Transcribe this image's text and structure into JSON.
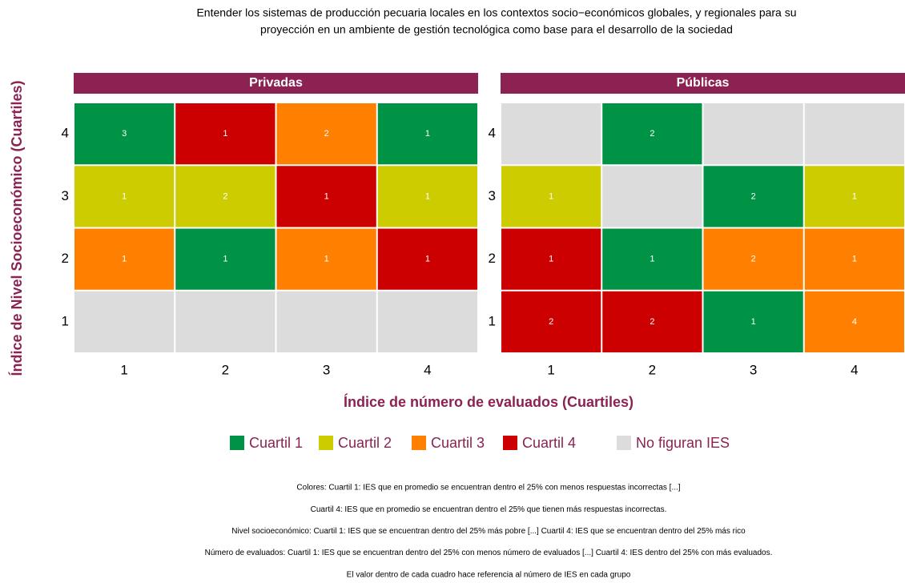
{
  "chart_data": {
    "type": "heatmap",
    "title": [
      "Entender los sistemas de producción pecuaria locales en los contextos socio−económicos globales, y regionales para su",
      "proyección en un ambiente de gestión tecnológica como base para el desarrollo de la sociedad"
    ],
    "xlabel": "Índice de número de evaluados (Cuartiles)",
    "ylabel": "Índice de Nivel Socioeconómico (Cuartiles)",
    "x_categories": [
      1,
      2,
      3,
      4
    ],
    "y_categories": [
      1,
      2,
      3,
      4
    ],
    "legend": [
      {
        "name": "Cuartil 1",
        "color": "#009245"
      },
      {
        "name": "Cuartil 2",
        "color": "#cccc00"
      },
      {
        "name": "Cuartil 3",
        "color": "#ff7f00"
      },
      {
        "name": "Cuartil 4",
        "color": "#cc0000"
      },
      {
        "name": "No figuran IES",
        "color": "#dcdcdc"
      }
    ],
    "panels": [
      {
        "name": "Privadas",
        "values": [
          [
            null,
            null,
            null,
            null
          ],
          [
            1,
            1,
            1,
            1
          ],
          [
            1,
            2,
            1,
            1
          ],
          [
            3,
            1,
            2,
            1
          ]
        ],
        "colors": [
          [
            "#dcdcdc",
            "#dcdcdc",
            "#dcdcdc",
            "#dcdcdc"
          ],
          [
            "#ff7f00",
            "#009245",
            "#ff7f00",
            "#cc0000"
          ],
          [
            "#cccc00",
            "#cccc00",
            "#cc0000",
            "#cccc00"
          ],
          [
            "#009245",
            "#cc0000",
            "#ff7f00",
            "#009245"
          ]
        ]
      },
      {
        "name": "Públicas",
        "values": [
          [
            2,
            2,
            1,
            4
          ],
          [
            1,
            1,
            2,
            1
          ],
          [
            1,
            null,
            2,
            1
          ],
          [
            null,
            2,
            null,
            null
          ]
        ],
        "colors": [
          [
            "#cc0000",
            "#cc0000",
            "#009245",
            "#ff7f00"
          ],
          [
            "#cc0000",
            "#009245",
            "#ff7f00",
            "#ff7f00"
          ],
          [
            "#cccc00",
            "#dcdcdc",
            "#009245",
            "#cccc00"
          ],
          [
            "#dcdcdc",
            "#009245",
            "#dcdcdc",
            "#dcdcdc"
          ]
        ]
      }
    ],
    "notes": [
      "Colores: Cuartil 1:  IES que en promedio se encuentran dentro el 25% con menos respuestas incorrectas [...]",
      "Cuartil 4: IES que en promedio se encuentran dentro el 25% que tienen más respuestas incorrectas.",
      "Nivel socioeconómico: Cuartil 1: IES que se encuentran dentro del 25% más pobre [...] Cuartil 4: IES que se encuentran dentro del 25% más rico",
      "Número de evaluados: Cuartil 1: IES que se encuentran dentro del 25% con menos número de evaluados [...] Cuartil 4: IES dentro del 25% con más evaluados.",
      "El valor dentro de cada cuadro hace referencia al número de IES en cada grupo"
    ]
  }
}
